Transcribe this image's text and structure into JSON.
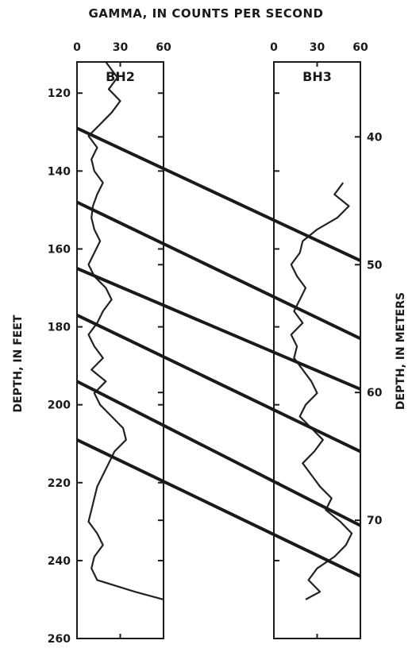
{
  "chart_data": {
    "type": "line",
    "title": "GAMMA, IN COUNTS PER SECOND",
    "ylabel_left": "DEPTH, IN FEET",
    "ylabel_right": "DEPTH, IN METERS",
    "x_ticks": [
      "0",
      "30",
      "60"
    ],
    "xlim": [
      0,
      60
    ],
    "left_ylim_feet": [
      112,
      260
    ],
    "left_ticks_feet": [
      "120",
      "140",
      "160",
      "180",
      "200",
      "220",
      "240",
      "260"
    ],
    "right_ticks_meters": [
      "40",
      "50",
      "60",
      "70"
    ],
    "panels": [
      {
        "name": "BH2",
        "depth_range_feet": [
          112,
          251
        ],
        "series": [
          {
            "depth_ft": 112,
            "gamma": 20
          },
          {
            "depth_ft": 116,
            "gamma": 28
          },
          {
            "depth_ft": 119,
            "gamma": 22
          },
          {
            "depth_ft": 122,
            "gamma": 30
          },
          {
            "depth_ft": 125,
            "gamma": 24
          },
          {
            "depth_ft": 128,
            "gamma": 16
          },
          {
            "depth_ft": 131,
            "gamma": 8
          },
          {
            "depth_ft": 134,
            "gamma": 14
          },
          {
            "depth_ft": 137,
            "gamma": 10
          },
          {
            "depth_ft": 140,
            "gamma": 12
          },
          {
            "depth_ft": 143,
            "gamma": 18
          },
          {
            "depth_ft": 146,
            "gamma": 14
          },
          {
            "depth_ft": 149,
            "gamma": 11
          },
          {
            "depth_ft": 152,
            "gamma": 10
          },
          {
            "depth_ft": 155,
            "gamma": 12
          },
          {
            "depth_ft": 158,
            "gamma": 16
          },
          {
            "depth_ft": 161,
            "gamma": 12
          },
          {
            "depth_ft": 164,
            "gamma": 8
          },
          {
            "depth_ft": 167,
            "gamma": 12
          },
          {
            "depth_ft": 170,
            "gamma": 20
          },
          {
            "depth_ft": 173,
            "gamma": 24
          },
          {
            "depth_ft": 176,
            "gamma": 18
          },
          {
            "depth_ft": 179,
            "gamma": 14
          },
          {
            "depth_ft": 182,
            "gamma": 8
          },
          {
            "depth_ft": 185,
            "gamma": 12
          },
          {
            "depth_ft": 188,
            "gamma": 18
          },
          {
            "depth_ft": 191,
            "gamma": 10
          },
          {
            "depth_ft": 194,
            "gamma": 20
          },
          {
            "depth_ft": 197,
            "gamma": 12
          },
          {
            "depth_ft": 200,
            "gamma": 16
          },
          {
            "depth_ft": 203,
            "gamma": 24
          },
          {
            "depth_ft": 206,
            "gamma": 32
          },
          {
            "depth_ft": 209,
            "gamma": 34
          },
          {
            "depth_ft": 212,
            "gamma": 26
          },
          {
            "depth_ft": 215,
            "gamma": 22
          },
          {
            "depth_ft": 218,
            "gamma": 18
          },
          {
            "depth_ft": 221,
            "gamma": 14
          },
          {
            "depth_ft": 224,
            "gamma": 12
          },
          {
            "depth_ft": 227,
            "gamma": 10
          },
          {
            "depth_ft": 230,
            "gamma": 8
          },
          {
            "depth_ft": 233,
            "gamma": 14
          },
          {
            "depth_ft": 236,
            "gamma": 18
          },
          {
            "depth_ft": 239,
            "gamma": 12
          },
          {
            "depth_ft": 242,
            "gamma": 10
          },
          {
            "depth_ft": 245,
            "gamma": 14
          },
          {
            "depth_ft": 248,
            "gamma": 40
          },
          {
            "depth_ft": 250,
            "gamma": 60
          }
        ]
      },
      {
        "name": "BH3",
        "depth_range_feet": [
          143,
          251
        ],
        "series": [
          {
            "depth_ft": 143,
            "gamma": 48
          },
          {
            "depth_ft": 146,
            "gamma": 42
          },
          {
            "depth_ft": 149,
            "gamma": 52
          },
          {
            "depth_ft": 152,
            "gamma": 44
          },
          {
            "depth_ft": 155,
            "gamma": 30
          },
          {
            "depth_ft": 158,
            "gamma": 20
          },
          {
            "depth_ft": 161,
            "gamma": 18
          },
          {
            "depth_ft": 164,
            "gamma": 12
          },
          {
            "depth_ft": 167,
            "gamma": 16
          },
          {
            "depth_ft": 170,
            "gamma": 22
          },
          {
            "depth_ft": 173,
            "gamma": 18
          },
          {
            "depth_ft": 176,
            "gamma": 14
          },
          {
            "depth_ft": 179,
            "gamma": 20
          },
          {
            "depth_ft": 182,
            "gamma": 12
          },
          {
            "depth_ft": 185,
            "gamma": 16
          },
          {
            "depth_ft": 188,
            "gamma": 14
          },
          {
            "depth_ft": 191,
            "gamma": 20
          },
          {
            "depth_ft": 194,
            "gamma": 26
          },
          {
            "depth_ft": 197,
            "gamma": 30
          },
          {
            "depth_ft": 200,
            "gamma": 22
          },
          {
            "depth_ft": 203,
            "gamma": 18
          },
          {
            "depth_ft": 206,
            "gamma": 26
          },
          {
            "depth_ft": 209,
            "gamma": 34
          },
          {
            "depth_ft": 212,
            "gamma": 28
          },
          {
            "depth_ft": 215,
            "gamma": 20
          },
          {
            "depth_ft": 218,
            "gamma": 26
          },
          {
            "depth_ft": 221,
            "gamma": 32
          },
          {
            "depth_ft": 224,
            "gamma": 40
          },
          {
            "depth_ft": 227,
            "gamma": 36
          },
          {
            "depth_ft": 230,
            "gamma": 46
          },
          {
            "depth_ft": 233,
            "gamma": 54
          },
          {
            "depth_ft": 236,
            "gamma": 50
          },
          {
            "depth_ft": 239,
            "gamma": 42
          },
          {
            "depth_ft": 242,
            "gamma": 30
          },
          {
            "depth_ft": 245,
            "gamma": 24
          },
          {
            "depth_ft": 248,
            "gamma": 32
          },
          {
            "depth_ft": 250,
            "gamma": 22
          }
        ]
      }
    ],
    "correlation_lines_feet": [
      {
        "bh2_depth_ft": 129,
        "bh3_depth_ft": 163
      },
      {
        "bh2_depth_ft": 148,
        "bh3_depth_ft": 183
      },
      {
        "bh2_depth_ft": 165,
        "bh3_depth_ft": 196
      },
      {
        "bh2_depth_ft": 177,
        "bh3_depth_ft": 212
      },
      {
        "bh2_depth_ft": 194,
        "bh3_depth_ft": 231
      },
      {
        "bh2_depth_ft": 209,
        "bh3_depth_ft": 244
      }
    ]
  }
}
